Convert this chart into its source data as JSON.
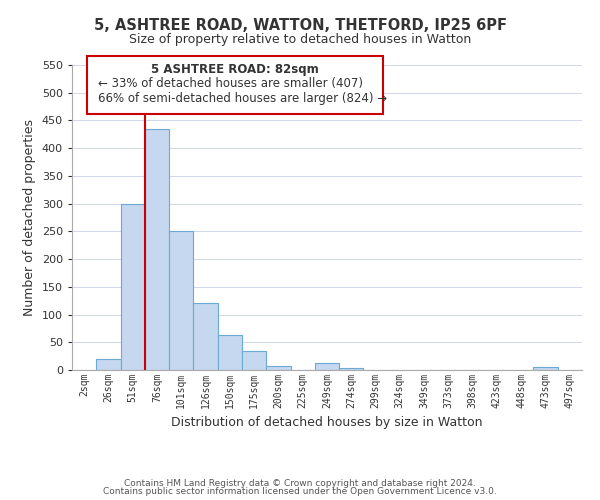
{
  "title": "5, ASHTREE ROAD, WATTON, THETFORD, IP25 6PF",
  "subtitle": "Size of property relative to detached houses in Watton",
  "xlabel": "Distribution of detached houses by size in Watton",
  "ylabel": "Number of detached properties",
  "bar_labels": [
    "2sqm",
    "26sqm",
    "51sqm",
    "76sqm",
    "101sqm",
    "126sqm",
    "150sqm",
    "175sqm",
    "200sqm",
    "225sqm",
    "249sqm",
    "274sqm",
    "299sqm",
    "324sqm",
    "349sqm",
    "373sqm",
    "398sqm",
    "423sqm",
    "448sqm",
    "473sqm",
    "497sqm"
  ],
  "bar_values": [
    0,
    20,
    300,
    435,
    250,
    120,
    63,
    35,
    8,
    0,
    12,
    3,
    0,
    0,
    0,
    0,
    0,
    0,
    0,
    5,
    0
  ],
  "bar_color": "#c5d8ef",
  "bar_edge_color": "#6aaad4",
  "ylim": [
    0,
    550
  ],
  "yticks": [
    0,
    50,
    100,
    150,
    200,
    250,
    300,
    350,
    400,
    450,
    500,
    550
  ],
  "vline_index": 3,
  "vline_color": "#cc0000",
  "annotation_title": "5 ASHTREE ROAD: 82sqm",
  "annotation_line1": "← 33% of detached houses are smaller (407)",
  "annotation_line2": "66% of semi-detached houses are larger (824) →",
  "annotation_box_color": "#ffffff",
  "annotation_box_edge": "#cc0000",
  "footer_line1": "Contains HM Land Registry data © Crown copyright and database right 2024.",
  "footer_line2": "Contains public sector information licensed under the Open Government Licence v3.0.",
  "background_color": "#ffffff",
  "grid_color": "#d0d8e8"
}
